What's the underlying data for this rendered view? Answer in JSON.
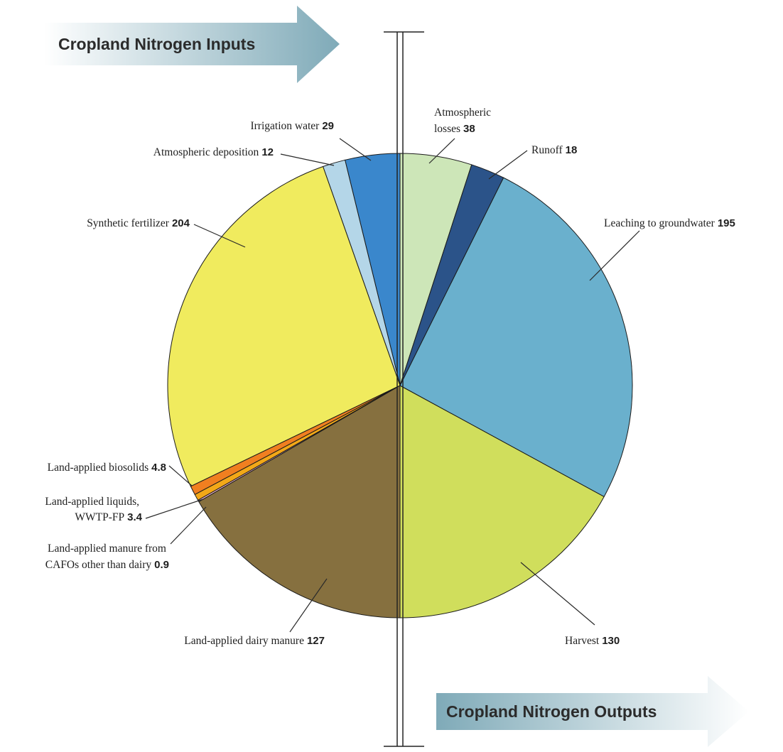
{
  "banners": {
    "inputs": "Cropland Nitrogen Inputs",
    "outputs": "Cropland Nitrogen Outputs"
  },
  "chart_data": {
    "type": "pie",
    "title": "",
    "groups": [
      {
        "name": "Cropland Nitrogen Inputs",
        "side": "left",
        "slices": [
          {
            "label": "Irrigation water",
            "value": 29,
            "color": "#3a87cc"
          },
          {
            "label": "Atmospheric deposition",
            "value": 12,
            "color": "#b4d6e8"
          },
          {
            "label": "Synthetic fertilizer",
            "value": 204,
            "color": "#f0eb5e"
          },
          {
            "label": "Land-applied biosolids",
            "value": 4.8,
            "color": "#f07f20"
          },
          {
            "label": "Land-applied liquids, WWTP-FP",
            "value": 3.4,
            "color": "#f2a818"
          },
          {
            "label": "Land-applied manure from CAFOs other than dairy",
            "value": 0.9,
            "color": "#f2b8cc"
          },
          {
            "label": "Land-applied dairy manure",
            "value": 127,
            "color": "#86703f"
          }
        ]
      },
      {
        "name": "Cropland Nitrogen Outputs",
        "side": "right",
        "slices": [
          {
            "label": "Atmospheric losses",
            "value": 38,
            "color": "#cde6b8"
          },
          {
            "label": "Runoff",
            "value": 18,
            "color": "#2b5389"
          },
          {
            "label": "Leaching to groundwater",
            "value": 195,
            "color": "#6ab0cd"
          },
          {
            "label": "Harvest",
            "value": 130,
            "color": "#d0de5c"
          }
        ]
      }
    ]
  },
  "labels": [
    {
      "name": "label-irrigation-water",
      "lines": [
        "Irrigation water"
      ],
      "value": "29"
    },
    {
      "name": "label-atmospheric-deposition",
      "lines": [
        "Atmospheric deposition"
      ],
      "value": "12"
    },
    {
      "name": "label-synthetic-fertilizer",
      "lines": [
        "Synthetic fertilizer"
      ],
      "value": "204"
    },
    {
      "name": "label-land-applied-biosolids",
      "lines": [
        "Land-applied biosolids"
      ],
      "value": "4.8"
    },
    {
      "name": "label-land-applied-liquids",
      "lines": [
        "Land-applied liquids,",
        "WWTP-FP"
      ],
      "value": "3.4"
    },
    {
      "name": "label-land-applied-manure-cafos",
      "lines": [
        "Land-applied manure from",
        "CAFOs other than dairy"
      ],
      "value": "0.9"
    },
    {
      "name": "label-land-applied-dairy-manure",
      "lines": [
        "Land-applied dairy manure"
      ],
      "value": "127"
    },
    {
      "name": "label-atmospheric-losses",
      "lines": [
        "Atmospheric",
        "losses"
      ],
      "value": "38"
    },
    {
      "name": "label-runoff",
      "lines": [
        "Runoff"
      ],
      "value": "18"
    },
    {
      "name": "label-leaching-to-groundwater",
      "lines": [
        "Leaching to groundwater"
      ],
      "value": "195"
    },
    {
      "name": "label-harvest",
      "lines": [
        "Harvest"
      ],
      "value": "130"
    }
  ]
}
